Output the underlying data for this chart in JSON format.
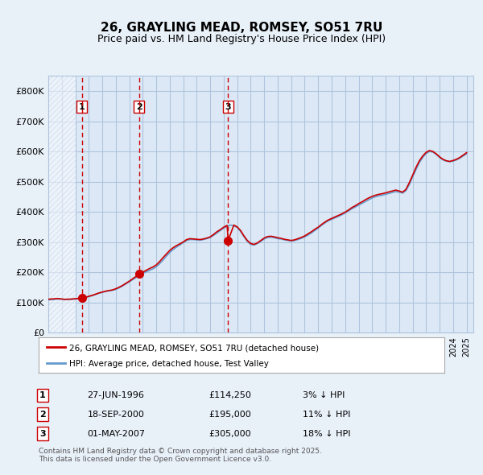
{
  "title": "26, GRAYLING MEAD, ROMSEY, SO51 7RU",
  "subtitle": "Price paid vs. HM Land Registry's House Price Index (HPI)",
  "background_color": "#e8f0f8",
  "plot_bg_color": "#dce8f5",
  "hatch_color": "#c8d8ec",
  "grid_color": "#b0c4de",
  "ylim": [
    0,
    850000
  ],
  "yticks": [
    0,
    100000,
    200000,
    300000,
    400000,
    500000,
    600000,
    700000,
    800000
  ],
  "ytick_labels": [
    "£0",
    "£100K",
    "£200K",
    "£300K",
    "£400K",
    "£500K",
    "£600K",
    "£700K",
    "£800K"
  ],
  "xlim_start": 1994.0,
  "xlim_end": 2025.5,
  "sale_color": "#cc0000",
  "hpi_color": "#6699cc",
  "sale_marker_color": "#cc0000",
  "vline_color": "#cc0000",
  "purchases": [
    {
      "label": "1",
      "date_num": 1996.49,
      "price": 114250
    },
    {
      "label": "2",
      "date_num": 2000.72,
      "price": 195000
    },
    {
      "label": "3",
      "date_num": 2007.33,
      "price": 305000
    }
  ],
  "legend_sale_label": "26, GRAYLING MEAD, ROMSEY, SO51 7RU (detached house)",
  "legend_hpi_label": "HPI: Average price, detached house, Test Valley",
  "table_rows": [
    {
      "num": "1",
      "date": "27-JUN-1996",
      "price": "£114,250",
      "hpi": "3% ↓ HPI"
    },
    {
      "num": "2",
      "date": "18-SEP-2000",
      "price": "£195,000",
      "hpi": "11% ↓ HPI"
    },
    {
      "num": "3",
      "date": "01-MAY-2007",
      "price": "£305,000",
      "hpi": "18% ↓ HPI"
    }
  ],
  "footnote": "Contains HM Land Registry data © Crown copyright and database right 2025.\nThis data is licensed under the Open Government Licence v3.0.",
  "hpi_data": {
    "years": [
      1994.0,
      1994.25,
      1994.5,
      1994.75,
      1995.0,
      1995.25,
      1995.5,
      1995.75,
      1996.0,
      1996.25,
      1996.5,
      1996.75,
      1997.0,
      1997.25,
      1997.5,
      1997.75,
      1998.0,
      1998.25,
      1998.5,
      1998.75,
      1999.0,
      1999.25,
      1999.5,
      1999.75,
      2000.0,
      2000.25,
      2000.5,
      2000.75,
      2001.0,
      2001.25,
      2001.5,
      2001.75,
      2002.0,
      2002.25,
      2002.5,
      2002.75,
      2003.0,
      2003.25,
      2003.5,
      2003.75,
      2004.0,
      2004.25,
      2004.5,
      2004.75,
      2005.0,
      2005.25,
      2005.5,
      2005.75,
      2006.0,
      2006.25,
      2006.5,
      2006.75,
      2007.0,
      2007.25,
      2007.5,
      2007.75,
      2008.0,
      2008.25,
      2008.5,
      2008.75,
      2009.0,
      2009.25,
      2009.5,
      2009.75,
      2010.0,
      2010.25,
      2010.5,
      2010.75,
      2011.0,
      2011.25,
      2011.5,
      2011.75,
      2012.0,
      2012.25,
      2012.5,
      2012.75,
      2013.0,
      2013.25,
      2013.5,
      2013.75,
      2014.0,
      2014.25,
      2014.5,
      2014.75,
      2015.0,
      2015.25,
      2015.5,
      2015.75,
      2016.0,
      2016.25,
      2016.5,
      2016.75,
      2017.0,
      2017.25,
      2017.5,
      2017.75,
      2018.0,
      2018.25,
      2018.5,
      2018.75,
      2019.0,
      2019.25,
      2019.5,
      2019.75,
      2020.0,
      2020.25,
      2020.5,
      2020.75,
      2021.0,
      2021.25,
      2021.5,
      2021.75,
      2022.0,
      2022.25,
      2022.5,
      2022.75,
      2023.0,
      2023.25,
      2023.5,
      2023.75,
      2024.0,
      2024.25,
      2024.5,
      2024.75,
      2025.0
    ],
    "values": [
      108000,
      109000,
      110000,
      111000,
      110000,
      109000,
      109500,
      110000,
      111000,
      112000,
      114000,
      116000,
      119000,
      122000,
      126000,
      130000,
      133000,
      136000,
      138000,
      140000,
      143000,
      148000,
      154000,
      161000,
      168000,
      175000,
      182000,
      190000,
      196000,
      201000,
      206000,
      211000,
      218000,
      228000,
      240000,
      253000,
      265000,
      275000,
      283000,
      290000,
      298000,
      305000,
      308000,
      308000,
      307000,
      306000,
      308000,
      311000,
      315000,
      322000,
      330000,
      338000,
      346000,
      352000,
      356000,
      354000,
      348000,
      335000,
      318000,
      302000,
      292000,
      290000,
      295000,
      302000,
      310000,
      315000,
      316000,
      314000,
      311000,
      310000,
      307000,
      305000,
      303000,
      305000,
      308000,
      312000,
      317000,
      323000,
      330000,
      338000,
      346000,
      355000,
      363000,
      370000,
      375000,
      380000,
      385000,
      390000,
      396000,
      403000,
      410000,
      416000,
      422000,
      428000,
      434000,
      440000,
      446000,
      450000,
      453000,
      455000,
      458000,
      461000,
      464000,
      467000,
      465000,
      462000,
      470000,
      490000,
      515000,
      540000,
      563000,
      580000,
      593000,
      600000,
      598000,
      590000,
      580000,
      572000,
      568000,
      566000,
      568000,
      572000,
      578000,
      585000,
      592000
    ]
  },
  "sale_data": {
    "years": [
      1994.0,
      1994.25,
      1994.5,
      1994.75,
      1995.0,
      1995.25,
      1995.5,
      1995.75,
      1996.0,
      1996.25,
      1996.49,
      1996.75,
      1997.0,
      1997.25,
      1997.5,
      1997.75,
      1998.0,
      1998.25,
      1998.5,
      1998.75,
      1999.0,
      1999.25,
      1999.5,
      1999.75,
      2000.0,
      2000.25,
      2000.5,
      2000.72,
      2001.0,
      2001.25,
      2001.5,
      2001.75,
      2002.0,
      2002.25,
      2002.5,
      2002.75,
      2003.0,
      2003.25,
      2003.5,
      2003.75,
      2004.0,
      2004.25,
      2004.5,
      2004.75,
      2005.0,
      2005.25,
      2005.5,
      2005.75,
      2006.0,
      2006.25,
      2006.5,
      2006.75,
      2007.0,
      2007.25,
      2007.33,
      2007.75,
      2008.0,
      2008.25,
      2008.5,
      2008.75,
      2009.0,
      2009.25,
      2009.5,
      2009.75,
      2010.0,
      2010.25,
      2010.5,
      2010.75,
      2011.0,
      2011.25,
      2011.5,
      2011.75,
      2012.0,
      2012.25,
      2012.5,
      2012.75,
      2013.0,
      2013.25,
      2013.5,
      2013.75,
      2014.0,
      2014.25,
      2014.5,
      2014.75,
      2015.0,
      2015.25,
      2015.5,
      2015.75,
      2016.0,
      2016.25,
      2016.5,
      2016.75,
      2017.0,
      2017.25,
      2017.5,
      2017.75,
      2018.0,
      2018.25,
      2018.5,
      2018.75,
      2019.0,
      2019.25,
      2019.5,
      2019.75,
      2020.0,
      2020.25,
      2020.5,
      2020.75,
      2021.0,
      2021.25,
      2021.5,
      2021.75,
      2022.0,
      2022.25,
      2022.5,
      2022.75,
      2023.0,
      2023.25,
      2023.5,
      2023.75,
      2024.0,
      2024.25,
      2024.5,
      2024.75,
      2025.0
    ],
    "values": [
      110500,
      111000,
      112000,
      112500,
      111000,
      110000,
      110500,
      111000,
      112000,
      113000,
      114250,
      116500,
      120000,
      123000,
      127000,
      131000,
      134000,
      137000,
      139000,
      141000,
      145000,
      150000,
      156000,
      163000,
      170000,
      178000,
      186000,
      195000,
      200000,
      206000,
      212000,
      217000,
      224000,
      235000,
      248000,
      260000,
      272000,
      281000,
      288000,
      294000,
      300000,
      308000,
      311000,
      310000,
      309000,
      308000,
      310000,
      313000,
      317000,
      325000,
      334000,
      341000,
      349000,
      355000,
      305000,
      356000,
      350000,
      338000,
      320000,
      305000,
      295000,
      292000,
      297000,
      305000,
      313000,
      318000,
      319000,
      317000,
      314000,
      312000,
      309000,
      307000,
      305000,
      307000,
      311000,
      315000,
      320000,
      327000,
      334000,
      342000,
      349000,
      358000,
      366000,
      373000,
      378000,
      383000,
      388000,
      393000,
      399000,
      406000,
      414000,
      420000,
      427000,
      433000,
      440000,
      446000,
      451000,
      455000,
      458000,
      460000,
      463000,
      466000,
      469000,
      472000,
      469000,
      465000,
      474000,
      496000,
      521000,
      547000,
      569000,
      585000,
      597000,
      603000,
      600000,
      592000,
      582000,
      574000,
      569000,
      567000,
      570000,
      574000,
      580000,
      588000,
      596000
    ]
  }
}
